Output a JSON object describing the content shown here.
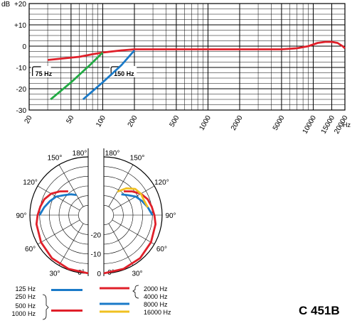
{
  "chart_data": [
    {
      "type": "line",
      "title": "",
      "ylabel": "dB",
      "xlabel": "Hz",
      "x_scale": "log",
      "xlim": [
        20,
        20000
      ],
      "ylim": [
        -30,
        20
      ],
      "y_ticks": [
        "+20",
        "+10",
        "0",
        "-10",
        "-20",
        "-30"
      ],
      "x_ticks": [
        "20",
        "50",
        "100",
        "200",
        "500",
        "1000",
        "2000",
        "5000",
        "10000",
        "15000",
        "20000"
      ],
      "grid": true,
      "annotations": [
        "75 Hz",
        "150 Hz"
      ],
      "series": [
        {
          "color": "#e0202a",
          "x": [
            30,
            60,
            80,
            100,
            150,
            200,
            500,
            1000,
            3000,
            5000,
            7000,
            9000,
            11000,
            13000,
            15000,
            17000,
            19000,
            20000
          ],
          "y": [
            -6.5,
            -5,
            -3.8,
            -3,
            -2,
            -1.5,
            -1.5,
            -1.5,
            -1.5,
            -1.5,
            -1,
            0,
            1.5,
            2,
            2,
            1.5,
            0,
            -1
          ]
        },
        {
          "color": "#22aa44",
          "x": [
            32,
            50,
            75,
            100
          ],
          "y": [
            -25,
            -17,
            -9,
            -3
          ]
        },
        {
          "color": "#1a7ac8",
          "x": [
            65,
            100,
            150,
            200
          ],
          "y": [
            -25,
            -17,
            -9,
            -2
          ]
        }
      ]
    },
    {
      "type": "polar",
      "angle_labels": [
        "180°",
        "150°",
        "120°",
        "90°",
        "60°",
        "30°",
        "0°"
      ],
      "radial_labels": [
        "-20",
        "-10",
        "0"
      ],
      "legend": {
        "left": [
          {
            "labels": [
              "125 Hz",
              "250 Hz"
            ],
            "color": "#1a7ac8"
          },
          {
            "labels": [
              "500 Hz",
              "1000 Hz"
            ],
            "color": "#e0202a"
          }
        ],
        "right": [
          {
            "labels": [
              "2000 Hz",
              "4000 Hz"
            ],
            "color": "#e0202a"
          },
          {
            "labels": [
              "8000 Hz"
            ],
            "color": "#1a7ac8"
          },
          {
            "labels": [
              "16000 Hz"
            ],
            "color": "#f0c020"
          }
        ]
      },
      "series": [
        {
          "side": "left",
          "color": "#1a7ac8",
          "angles": [
            90,
            100,
            110,
            120,
            130,
            140,
            150
          ],
          "db": [
            -5,
            -7,
            -9,
            -11,
            -14,
            -16,
            -18
          ]
        },
        {
          "side": "left",
          "color": "#e0202a",
          "angles": [
            0,
            20,
            40,
            60,
            80,
            90,
            100,
            110,
            120,
            130,
            140
          ],
          "db": [
            0,
            -0.5,
            -1,
            -2,
            -3,
            -4,
            -5,
            -6,
            -8,
            -11,
            -14
          ]
        },
        {
          "side": "right",
          "color": "#e0202a",
          "angles": [
            0,
            20,
            40,
            60,
            80,
            90,
            100,
            110,
            120,
            130,
            140
          ],
          "db": [
            0,
            -0.5,
            -1,
            -2,
            -3,
            -4,
            -5,
            -6,
            -8,
            -11,
            -14
          ]
        },
        {
          "side": "right",
          "color": "#1a7ac8",
          "angles": [
            90,
            100,
            110,
            120,
            130,
            140
          ],
          "db": [
            -5,
            -7,
            -9,
            -11,
            -14,
            -16
          ]
        },
        {
          "side": "right",
          "color": "#f0c020",
          "angles": [
            100,
            110,
            120,
            130,
            140,
            150
          ],
          "db": [
            -7,
            -8,
            -8,
            -9,
            -12,
            -16
          ]
        }
      ]
    }
  ],
  "model": "C 451B"
}
